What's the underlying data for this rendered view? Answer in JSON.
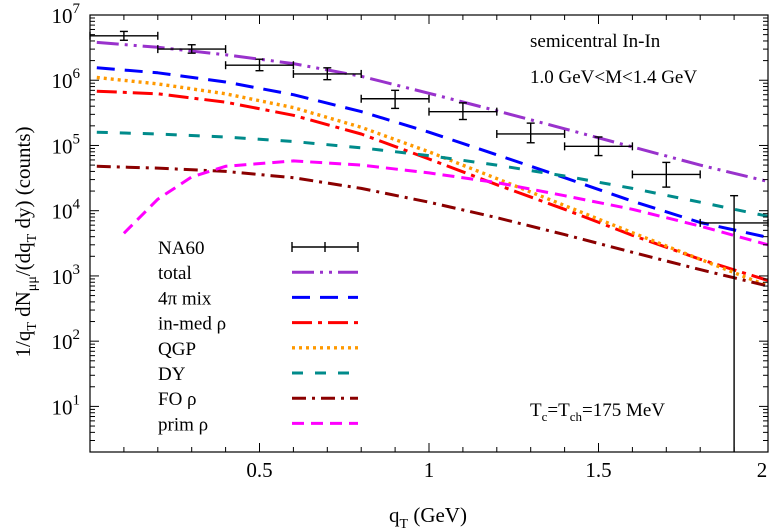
{
  "chart_data": {
    "type": "line",
    "xlabel": "q_T (GeV)",
    "ylabel": "1/q_T dN_μμ/(dq_T dy) (counts)",
    "xlim": [
      0,
      2
    ],
    "ylim": [
      2,
      10000000
    ],
    "yscale": "log",
    "x_ticks": [
      {
        "value": 0.5,
        "label": "0.5"
      },
      {
        "value": 1,
        "label": "1"
      },
      {
        "value": 1.5,
        "label": "1.5"
      },
      {
        "value": 2,
        "label": "2"
      }
    ],
    "y_ticks": [
      {
        "value": 10,
        "base": "10",
        "exp": "1"
      },
      {
        "value": 100,
        "base": "10",
        "exp": "2"
      },
      {
        "value": 1000,
        "base": "10",
        "exp": "3"
      },
      {
        "value": 10000,
        "base": "10",
        "exp": "4"
      },
      {
        "value": 100000,
        "base": "10",
        "exp": "5"
      },
      {
        "value": 1000000,
        "base": "10",
        "exp": "6"
      },
      {
        "value": 10000000,
        "base": "10",
        "exp": "7"
      }
    ],
    "annotations": [
      "semicentral In-In",
      "1.0 GeV<M<1.4 GeV",
      "T_c=T_ch=175 MeV"
    ],
    "data_points": {
      "name": "NA60",
      "color": "#000000",
      "points": [
        {
          "x": 0.1,
          "y": 4800000,
          "xerr": 0.1,
          "ylo": 4100000,
          "yhi": 5600000
        },
        {
          "x": 0.3,
          "y": 3000000,
          "xerr": 0.1,
          "ylo": 2600000,
          "yhi": 3500000
        },
        {
          "x": 0.5,
          "y": 1700000,
          "xerr": 0.1,
          "ylo": 1400000,
          "yhi": 2100000
        },
        {
          "x": 0.7,
          "y": 1250000,
          "xerr": 0.1,
          "ylo": 1020000,
          "yhi": 1550000
        },
        {
          "x": 0.9,
          "y": 520000,
          "xerr": 0.1,
          "ylo": 370000,
          "yhi": 700000
        },
        {
          "x": 1.1,
          "y": 330000,
          "xerr": 0.1,
          "ylo": 250000,
          "yhi": 450000
        },
        {
          "x": 1.3,
          "y": 150000,
          "xerr": 0.1,
          "ylo": 110000,
          "yhi": 220000
        },
        {
          "x": 1.5,
          "y": 97000,
          "xerr": 0.1,
          "ylo": 70000,
          "yhi": 135000
        },
        {
          "x": 1.7,
          "y": 36000,
          "xerr": 0.1,
          "ylo": 23000,
          "yhi": 55000
        },
        {
          "x": 1.9,
          "y": 6500,
          "xerr": 0.1,
          "ylo": 2,
          "yhi": 17000
        }
      ]
    },
    "series": [
      {
        "name": "total",
        "color": "#9932cc",
        "dash": "22,6,3,6,3,6",
        "width": 3,
        "x": [
          0.02,
          0.2,
          0.4,
          0.6,
          0.8,
          1.0,
          1.2,
          1.4,
          1.6,
          1.8,
          2.0
        ],
        "y": [
          3800000,
          3200000,
          2450000,
          1800000,
          1150000,
          630000,
          340000,
          180000,
          95000,
          50000,
          28000
        ]
      },
      {
        "name": "4π mix",
        "color": "#0000ff",
        "dash": "18,10",
        "width": 3,
        "x": [
          0.02,
          0.2,
          0.4,
          0.6,
          0.8,
          1.0,
          1.2,
          1.4,
          1.6,
          1.8,
          2.0
        ],
        "y": [
          1550000,
          1300000,
          940000,
          600000,
          330000,
          160000,
          72000,
          32000,
          14000,
          6600,
          3900
        ]
      },
      {
        "name": "in-med ρ",
        "color": "#ff0000",
        "dash": "20,6,4,6",
        "width": 3,
        "x": [
          0.02,
          0.2,
          0.4,
          0.6,
          0.8,
          1.0,
          1.2,
          1.4,
          1.6,
          1.8,
          2.0
        ],
        "y": [
          680000,
          620000,
          460000,
          290000,
          150000,
          62000,
          25000,
          10500,
          4200,
          1800,
          850
        ]
      },
      {
        "name": "QGP",
        "color": "#ff9900",
        "dash": "3,4",
        "width": 3.4,
        "x": [
          0.02,
          0.2,
          0.4,
          0.6,
          0.8,
          1.0,
          1.2,
          1.4,
          1.6,
          1.8,
          2.0
        ],
        "y": [
          1100000,
          880000,
          620000,
          380000,
          190000,
          80000,
          31000,
          12000,
          4600,
          1800,
          700
        ]
      },
      {
        "name": "DY",
        "color": "#008b8b",
        "dash": "11,12",
        "width": 3,
        "x": [
          0.02,
          0.2,
          0.4,
          0.6,
          0.8,
          1.0,
          1.2,
          1.4,
          1.6,
          1.8,
          2.0
        ],
        "y": [
          160000,
          150000,
          135000,
          115000,
          92000,
          70000,
          50000,
          34000,
          22000,
          13500,
          8200
        ]
      },
      {
        "name": "FO ρ",
        "color": "#8b0000",
        "dash": "14,6,3,6",
        "width": 3,
        "x": [
          0.02,
          0.2,
          0.4,
          0.6,
          0.8,
          1.0,
          1.2,
          1.4,
          1.6,
          1.8,
          2.0
        ],
        "y": [
          48000,
          45000,
          40000,
          32000,
          22000,
          13500,
          7800,
          4300,
          2300,
          1250,
          700
        ]
      },
      {
        "name": "prim ρ",
        "color": "#ff00ff",
        "dash": "12,7",
        "width": 3,
        "x": [
          0.1,
          0.2,
          0.3,
          0.4,
          0.6,
          0.8,
          1.0,
          1.2,
          1.4,
          1.6,
          1.8,
          2.0
        ],
        "y": [
          4500,
          15000,
          33000,
          48000,
          58000,
          50000,
          38000,
          27000,
          17000,
          10500,
          5800,
          3000
        ]
      }
    ]
  }
}
